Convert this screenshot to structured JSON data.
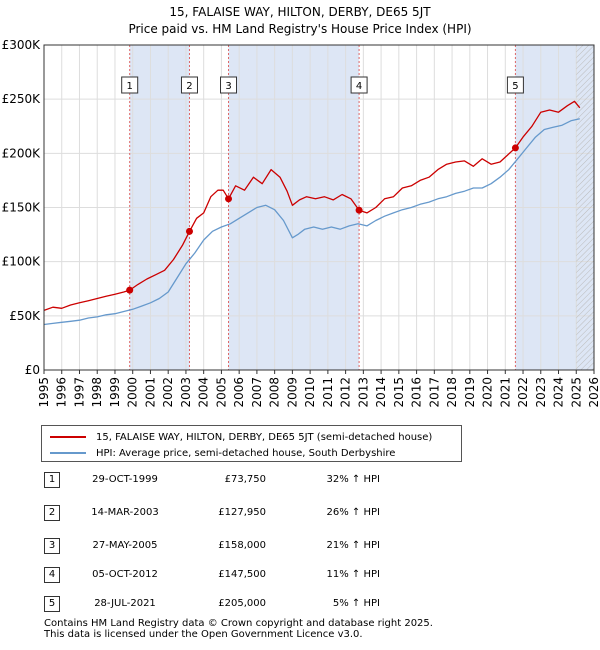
{
  "title_line1": "15, FALAISE WAY, HILTON, DERBY, DE65 5JT",
  "title_line2": "Price paid vs. HM Land Registry's House Price Index (HPI)",
  "legend": {
    "property": "15, FALAISE WAY, HILTON, DERBY, DE65 5JT (semi-detached house)",
    "hpi": "HPI: Average price, semi-detached house, South Derbyshire"
  },
  "colors": {
    "property": "#cc0000",
    "hpi": "#6699cc",
    "shade": "#dde6f5",
    "grid": "#dddddd",
    "marker_line": "#dd6666"
  },
  "sales": [
    {
      "num": "1",
      "date": "29-OCT-1999",
      "price": "£73,750",
      "hpi": "32% ↑ HPI"
    },
    {
      "num": "2",
      "date": "14-MAR-2003",
      "price": "£127,950",
      "hpi": "26% ↑ HPI"
    },
    {
      "num": "3",
      "date": "27-MAY-2005",
      "price": "£158,000",
      "hpi": "21% ↑ HPI"
    },
    {
      "num": "4",
      "date": "05-OCT-2012",
      "price": "£147,500",
      "hpi": "11% ↑ HPI"
    },
    {
      "num": "5",
      "date": "28-JUL-2021",
      "price": "£205,000",
      "hpi": "5% ↑ HPI"
    }
  ],
  "footer": {
    "line1": "Contains HM Land Registry data © Crown copyright and database right 2025.",
    "line2": "This data is licensed under the Open Government Licence v3.0."
  },
  "chart_data": {
    "type": "line",
    "title": "15, FALAISE WAY, HILTON, DERBY, DE65 5JT — Price paid vs. HM Land Registry's House Price Index (HPI)",
    "xlabel": "",
    "ylabel": "",
    "xlim": [
      1995,
      2026
    ],
    "ylim": [
      0,
      300000
    ],
    "x_ticks": [
      1995,
      1996,
      1997,
      1998,
      1999,
      2000,
      2001,
      2002,
      2003,
      2004,
      2005,
      2006,
      2007,
      2008,
      2009,
      2010,
      2011,
      2012,
      2013,
      2014,
      2015,
      2016,
      2017,
      2018,
      2019,
      2020,
      2021,
      2022,
      2023,
      2024,
      2025,
      2026
    ],
    "y_ticks": [
      0,
      50000,
      100000,
      150000,
      200000,
      250000,
      300000
    ],
    "y_tick_labels": [
      "£0",
      "£50K",
      "£100K",
      "£150K",
      "£200K",
      "£250K",
      "£300K"
    ],
    "grid": true,
    "legend_position": "below",
    "shaded_ranges": [
      [
        1999.83,
        2003.2
      ],
      [
        2005.4,
        2012.76
      ],
      [
        2021.57,
        2026
      ]
    ],
    "hatched_from": 2025.0,
    "markers": [
      {
        "label": "1",
        "x": 1999.83,
        "y": 73750
      },
      {
        "label": "2",
        "x": 2003.2,
        "y": 127950
      },
      {
        "label": "3",
        "x": 2005.4,
        "y": 158000
      },
      {
        "label": "4",
        "x": 2012.76,
        "y": 147500
      },
      {
        "label": "5",
        "x": 2021.57,
        "y": 205000
      }
    ],
    "series": [
      {
        "name": "15, FALAISE WAY, HILTON, DERBY, DE65 5JT (semi-detached house)",
        "x": [
          1995.0,
          1995.5,
          1996.0,
          1996.5,
          1997.0,
          1997.5,
          1998.0,
          1998.5,
          1999.0,
          1999.5,
          1999.83,
          2000.3,
          2000.8,
          2001.3,
          2001.8,
          2002.3,
          2002.8,
          2003.2,
          2003.6,
          2004.0,
          2004.4,
          2004.8,
          2005.1,
          2005.4,
          2005.8,
          2006.3,
          2006.8,
          2007.3,
          2007.8,
          2008.3,
          2008.7,
          2009.0,
          2009.4,
          2009.8,
          2010.3,
          2010.8,
          2011.3,
          2011.8,
          2012.3,
          2012.76,
          2013.2,
          2013.7,
          2014.2,
          2014.7,
          2015.2,
          2015.7,
          2016.2,
          2016.7,
          2017.2,
          2017.7,
          2018.2,
          2018.7,
          2019.2,
          2019.7,
          2020.2,
          2020.7,
          2021.1,
          2021.57,
          2022.0,
          2022.5,
          2023.0,
          2023.5,
          2024.0,
          2024.5,
          2024.9,
          2025.2
        ],
        "values": [
          55000,
          58000,
          57000,
          60000,
          62000,
          64000,
          66000,
          68000,
          70000,
          72000,
          73750,
          79000,
          84000,
          88000,
          92000,
          102000,
          115000,
          127950,
          140000,
          145000,
          160000,
          166000,
          166000,
          158000,
          170000,
          166000,
          178000,
          172000,
          185000,
          178000,
          165000,
          152000,
          157000,
          160000,
          158000,
          160000,
          157000,
          162000,
          158000,
          147500,
          145000,
          150000,
          158000,
          160000,
          168000,
          170000,
          175000,
          178000,
          185000,
          190000,
          192000,
          193000,
          188000,
          195000,
          190000,
          192000,
          198000,
          205000,
          215000,
          225000,
          238000,
          240000,
          238000,
          244000,
          248000,
          242000
        ]
      },
      {
        "name": "HPI: Average price, semi-detached house, South Derbyshire",
        "x": [
          1995.0,
          1995.5,
          1996.0,
          1996.5,
          1997.0,
          1997.5,
          1998.0,
          1998.5,
          1999.0,
          1999.5,
          2000.0,
          2000.5,
          2001.0,
          2001.5,
          2002.0,
          2002.5,
          2003.0,
          2003.5,
          2004.0,
          2004.5,
          2005.0,
          2005.5,
          2006.0,
          2006.5,
          2007.0,
          2007.5,
          2008.0,
          2008.5,
          2009.0,
          2009.3,
          2009.7,
          2010.2,
          2010.7,
          2011.2,
          2011.7,
          2012.2,
          2012.7,
          2013.2,
          2013.7,
          2014.2,
          2014.7,
          2015.2,
          2015.7,
          2016.2,
          2016.7,
          2017.2,
          2017.7,
          2018.2,
          2018.7,
          2019.2,
          2019.7,
          2020.2,
          2020.7,
          2021.2,
          2021.7,
          2022.2,
          2022.7,
          2023.2,
          2023.7,
          2024.2,
          2024.7,
          2025.2
        ],
        "values": [
          42000,
          43000,
          44000,
          45000,
          46000,
          48000,
          49000,
          51000,
          52000,
          54000,
          56000,
          59000,
          62000,
          66000,
          72000,
          85000,
          98000,
          108000,
          120000,
          128000,
          132000,
          135000,
          140000,
          145000,
          150000,
          152000,
          148000,
          138000,
          122000,
          125000,
          130000,
          132000,
          130000,
          132000,
          130000,
          133000,
          135000,
          133000,
          138000,
          142000,
          145000,
          148000,
          150000,
          153000,
          155000,
          158000,
          160000,
          163000,
          165000,
          168000,
          168000,
          172000,
          178000,
          185000,
          195000,
          205000,
          215000,
          222000,
          224000,
          226000,
          230000,
          232000
        ]
      }
    ]
  }
}
